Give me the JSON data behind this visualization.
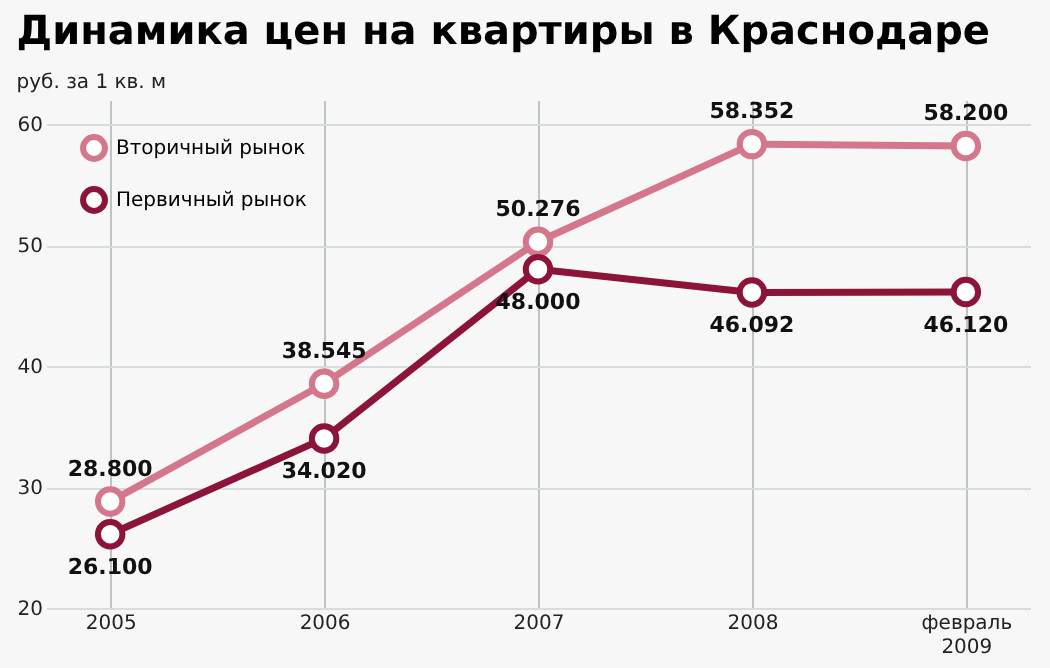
{
  "chart_data": {
    "type": "line",
    "title": "Динамика цен на квартиры в Краснодаре",
    "ylabel": "руб. за 1 кв. м",
    "categories": [
      "2005",
      "2006",
      "2007",
      "2008",
      "февраль 2009"
    ],
    "series": [
      {
        "name": "Вторичный рынок",
        "color": "#d4768c",
        "values": [
          28.8,
          38.545,
          50.276,
          58.352,
          58.2
        ],
        "value_labels": [
          "28.800",
          "38.545",
          "50.276",
          "58.352",
          "58.200"
        ]
      },
      {
        "name": "Первичный рынок",
        "color": "#8c1438",
        "values": [
          26.1,
          34.02,
          48.0,
          46.092,
          46.12
        ],
        "value_labels": [
          "26.100",
          "34.020",
          "48.000",
          "46.092",
          "46.120"
        ]
      }
    ],
    "ylim": [
      20,
      62
    ],
    "yticks": [
      20,
      30,
      40,
      50,
      60
    ],
    "grid": true,
    "legend": "top left",
    "marker": "circle",
    "line_style": "solid"
  }
}
